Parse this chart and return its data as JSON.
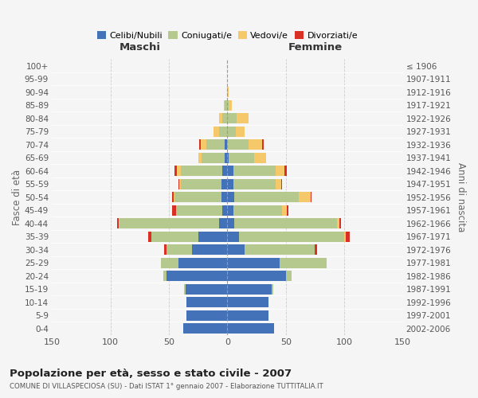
{
  "age_groups": [
    "0-4",
    "5-9",
    "10-14",
    "15-19",
    "20-24",
    "25-29",
    "30-34",
    "35-39",
    "40-44",
    "45-49",
    "50-54",
    "55-59",
    "60-64",
    "65-69",
    "70-74",
    "75-79",
    "80-84",
    "85-89",
    "90-94",
    "95-99",
    "100+"
  ],
  "birth_years": [
    "2002-2006",
    "1997-2001",
    "1992-1996",
    "1987-1991",
    "1982-1986",
    "1977-1981",
    "1972-1976",
    "1967-1971",
    "1962-1966",
    "1957-1961",
    "1952-1956",
    "1947-1951",
    "1942-1946",
    "1937-1941",
    "1932-1936",
    "1927-1931",
    "1922-1926",
    "1917-1921",
    "1912-1916",
    "1907-1911",
    "≤ 1906"
  ],
  "male_celibi": [
    38,
    35,
    35,
    36,
    52,
    42,
    30,
    25,
    7,
    4,
    5,
    5,
    4,
    2,
    2,
    0,
    0,
    0,
    0,
    0,
    0
  ],
  "male_coniugati": [
    0,
    0,
    0,
    1,
    3,
    15,
    22,
    40,
    85,
    40,
    40,
    35,
    36,
    20,
    16,
    7,
    4,
    2,
    0,
    0,
    0
  ],
  "male_vedovi": [
    0,
    0,
    0,
    0,
    0,
    0,
    0,
    0,
    1,
    0,
    1,
    1,
    3,
    3,
    5,
    5,
    3,
    1,
    0,
    0,
    0
  ],
  "male_divorziati": [
    0,
    0,
    0,
    0,
    0,
    0,
    2,
    3,
    1,
    3,
    1,
    1,
    2,
    0,
    1,
    0,
    0,
    0,
    0,
    0,
    0
  ],
  "female_nubili": [
    40,
    35,
    35,
    38,
    50,
    45,
    15,
    10,
    6,
    5,
    6,
    5,
    5,
    1,
    0,
    0,
    0,
    0,
    0,
    0,
    0
  ],
  "female_coniugate": [
    0,
    0,
    0,
    1,
    5,
    40,
    60,
    90,
    88,
    42,
    55,
    36,
    36,
    22,
    18,
    7,
    8,
    1,
    0,
    0,
    0
  ],
  "female_vedove": [
    0,
    0,
    0,
    0,
    0,
    0,
    0,
    1,
    2,
    4,
    10,
    5,
    8,
    10,
    12,
    8,
    10,
    3,
    1,
    0,
    0
  ],
  "female_divorziate": [
    0,
    0,
    0,
    0,
    0,
    0,
    2,
    4,
    1,
    1,
    1,
    1,
    2,
    0,
    1,
    0,
    0,
    0,
    0,
    0,
    0
  ],
  "color_celibi": "#4472b8",
  "color_coniugati": "#b5c98e",
  "color_vedovi": "#f5c96a",
  "color_divorziati": "#d93025",
  "title": "Popolazione per età, sesso e stato civile - 2007",
  "subtitle": "COMUNE DI VILLASPECIOSA (SU) - Dati ISTAT 1° gennaio 2007 - Elaborazione TUTTITALIA.IT",
  "label_maschi": "Maschi",
  "label_femmine": "Femmine",
  "ylabel_left": "Fasce di età",
  "ylabel_right": "Anni di nascita",
  "xlim": 150,
  "legend_labels": [
    "Celibi/Nubili",
    "Coniugati/e",
    "Vedovi/e",
    "Divorziati/e"
  ],
  "bg_color": "#f5f5f5",
  "grid_color": "#cccccc"
}
